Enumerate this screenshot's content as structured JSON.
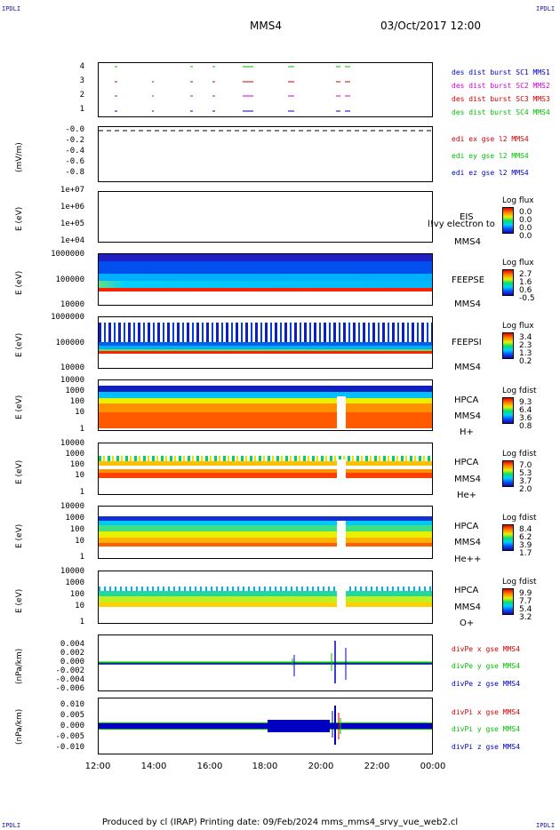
{
  "corners": {
    "tl": "IPDLI",
    "tr": "IPDLI",
    "bl": "IPDLI",
    "br": "IPDLI"
  },
  "header": {
    "title": "MMS4",
    "datetime": "03/Oct/2017 12:00"
  },
  "footer": "Produced by cl (IRAP)   Printing date: 09/Feb/2024   mms_mms4_srvy_vue_web2.cl",
  "x_ticks": [
    "12:00",
    "14:00",
    "16:00",
    "18:00",
    "20:00",
    "22:00",
    "00:00"
  ],
  "colors": {
    "red": "#d00000",
    "green": "#00c000",
    "blue": "#0000c0",
    "magenta": "#d000d0"
  },
  "chart_data": [
    {
      "type": "scatter",
      "panel": "burst",
      "yticks": [
        "4",
        "3",
        "2",
        "1"
      ],
      "series": [
        {
          "name": "des dist burst SC1 MMS1",
          "color": "#0000c0"
        },
        {
          "name": "des dist burst SC2 MMS2",
          "color": "#d000d0"
        },
        {
          "name": "des dist burst SC3 MMS3",
          "color": "#d00000"
        },
        {
          "name": "des dist burst SC4 MMS4",
          "color": "#00c000"
        }
      ]
    },
    {
      "type": "line",
      "panel": "edi",
      "ylabel": "(mV/m)",
      "yticks": [
        "-0.0",
        "-0.2",
        "-0.4",
        "-0.6",
        "-0.8"
      ],
      "series": [
        {
          "name": "edi ex gse l2 MMS4",
          "color": "#d00000"
        },
        {
          "name": "edi ey gse l2 MMS4",
          "color": "#00c000"
        },
        {
          "name": "edi ez gse l2 MMS4",
          "color": "#0000c0"
        }
      ]
    },
    {
      "type": "heatmap",
      "panel": "eis",
      "ylabel": "E (eV)",
      "yticks": [
        "1e+07",
        "1e+06",
        "1e+05",
        "1e+04"
      ],
      "inst": "EIS",
      "sc": "MMS4",
      "overlay": "l!vy electron to",
      "colorbar": {
        "title": "Log flux",
        "values": [
          "0.0",
          "0.0",
          "0.0",
          "0.0"
        ]
      }
    },
    {
      "type": "heatmap",
      "panel": "feepse",
      "ylabel": "E (eV)",
      "yticks": [
        "1000000",
        "100000",
        "10000"
      ],
      "inst": "FEEPSE",
      "sc": "MMS4",
      "colorbar": {
        "title": "Log flux",
        "values": [
          "2.7",
          "1.6",
          "0.6",
          "-0.5"
        ]
      }
    },
    {
      "type": "heatmap",
      "panel": "feepsi",
      "ylabel": "E (eV)",
      "yticks": [
        "1000000",
        "100000",
        "10000"
      ],
      "inst": "FEEPSI",
      "sc": "MMS4",
      "colorbar": {
        "title": "Log flux",
        "values": [
          "3.4",
          "2.3",
          "1.3",
          "0.2"
        ]
      }
    },
    {
      "type": "heatmap",
      "panel": "hpca_h",
      "ylabel": "E (eV)",
      "yticks": [
        "10000",
        "1000",
        "100",
        "10",
        "1"
      ],
      "inst": "HPCA",
      "sc": "MMS4",
      "species": "H+",
      "colorbar": {
        "title": "Log fdist",
        "values": [
          "9.3",
          "6.4",
          "3.6",
          "0.8"
        ]
      }
    },
    {
      "type": "heatmap",
      "panel": "hpca_he",
      "ylabel": "E (eV)",
      "yticks": [
        "10000",
        "1000",
        "100",
        "10",
        "1"
      ],
      "inst": "HPCA",
      "sc": "MMS4",
      "species": "He+",
      "colorbar": {
        "title": "Log fdist",
        "values": [
          "7.0",
          "5.3",
          "3.7",
          "2.0"
        ]
      }
    },
    {
      "type": "heatmap",
      "panel": "hpca_he2",
      "ylabel": "E (eV)",
      "yticks": [
        "10000",
        "1000",
        "100",
        "10",
        "1"
      ],
      "inst": "HPCA",
      "sc": "MMS4",
      "species": "He++",
      "colorbar": {
        "title": "Log fdist",
        "values": [
          "8.4",
          "6.2",
          "3.9",
          "1.7"
        ]
      }
    },
    {
      "type": "heatmap",
      "panel": "hpca_o",
      "ylabel": "E (eV)",
      "yticks": [
        "10000",
        "1000",
        "100",
        "10",
        "1"
      ],
      "inst": "HPCA",
      "sc": "MMS4",
      "species": "O+",
      "colorbar": {
        "title": "Log fdist",
        "values": [
          "9.9",
          "7.7",
          "5.4",
          "3.2"
        ]
      }
    },
    {
      "type": "line",
      "panel": "divpe",
      "ylabel": "(nPa/km)",
      "yticks": [
        "0.004",
        "0.002",
        "0.000",
        "-0.002",
        "-0.004",
        "-0.006"
      ],
      "series": [
        {
          "name": "divPe x gse MMS4",
          "color": "#d00000"
        },
        {
          "name": "divPe y gse MMS4",
          "color": "#00c000"
        },
        {
          "name": "divPe z gse MMS4",
          "color": "#0000c0"
        }
      ]
    },
    {
      "type": "line",
      "panel": "divpi",
      "ylabel": "(nPa/km)",
      "yticks": [
        "0.010",
        "0.005",
        "0.000",
        "-0.005",
        "-0.010"
      ],
      "series": [
        {
          "name": "divPi x gse MMS4",
          "color": "#d00000"
        },
        {
          "name": "divPi y gse MMS4",
          "color": "#00c000"
        },
        {
          "name": "divPi z gse MMS4",
          "color": "#0000c0"
        }
      ]
    }
  ]
}
